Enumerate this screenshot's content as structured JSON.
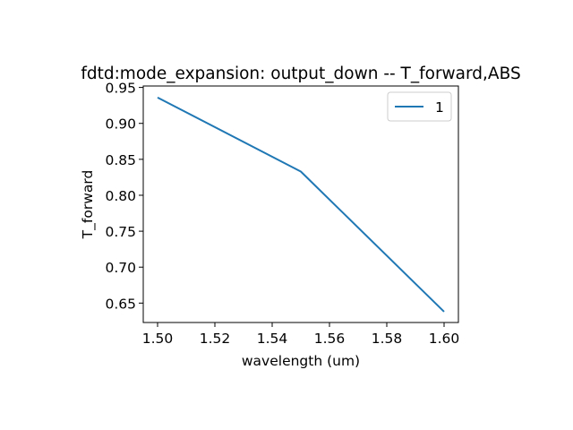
{
  "chart_data": {
    "type": "line",
    "title": "fdtd:mode_expansion: output_down -- T_forward,ABS",
    "xlabel": "wavelength (um)",
    "ylabel": "T_forward",
    "x": [
      1.5,
      1.55,
      1.6
    ],
    "series": [
      {
        "name": "1",
        "values": [
          0.936,
          0.833,
          0.638
        ],
        "color": "#1f77b4"
      }
    ],
    "xlim": [
      1.495,
      1.605
    ],
    "ylim": [
      0.623,
      0.952
    ],
    "xticks": [
      "1.50",
      "1.52",
      "1.54",
      "1.56",
      "1.58",
      "1.60"
    ],
    "yticks": [
      "0.65",
      "0.70",
      "0.75",
      "0.80",
      "0.85",
      "0.90",
      "0.95"
    ],
    "grid": false,
    "legend_position": "top-right"
  }
}
